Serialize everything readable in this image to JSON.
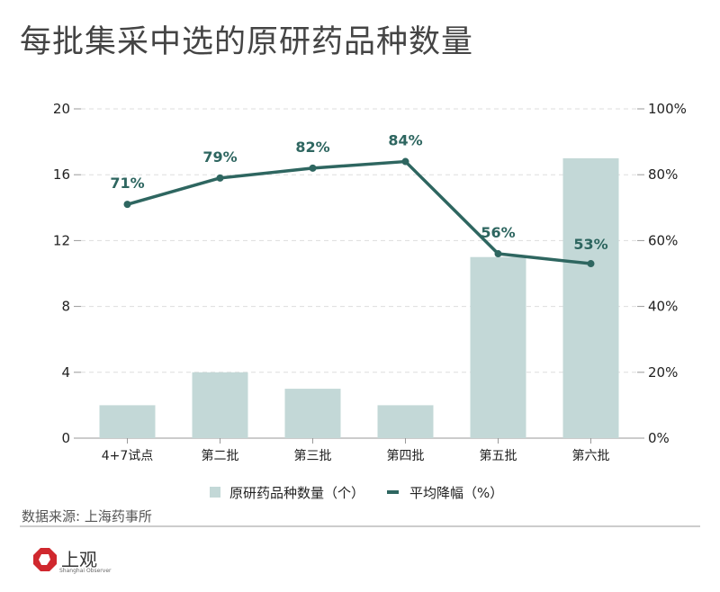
{
  "title": "每批集采中选的原研药品种数量",
  "source": "数据来源: 上海药事所",
  "logo": {
    "text": "上观",
    "sub": "Shanghai Observer"
  },
  "colors": {
    "bar": "#c3d8d7",
    "line": "#2e6660",
    "grid": "#dddddd",
    "text": "#222222"
  },
  "chart_data": {
    "type": "bar+line",
    "title": "每批集采中选的原研药品种数量",
    "categories": [
      "4+7试点",
      "第二批",
      "第三批",
      "第四批",
      "第五批",
      "第六批"
    ],
    "series": [
      {
        "name": "原研药品种数量（个）",
        "type": "bar",
        "axis": "left",
        "values": [
          2,
          4,
          3,
          2,
          11,
          17
        ]
      },
      {
        "name": "平均降幅（%）",
        "type": "line",
        "axis": "right",
        "values": [
          71,
          79,
          82,
          84,
          56,
          53
        ],
        "labels": [
          "71%",
          "79%",
          "82%",
          "84%",
          "56%",
          "53%"
        ]
      }
    ],
    "left_axis": {
      "ylim": [
        0,
        20
      ],
      "ticks": [
        "0",
        "4",
        "8",
        "12",
        "16",
        "20"
      ]
    },
    "right_axis": {
      "ylim": [
        0,
        100
      ],
      "ticks": [
        "0%",
        "20%",
        "40%",
        "60%",
        "80%",
        "100%"
      ]
    },
    "grid": true,
    "legend": "bottom"
  }
}
